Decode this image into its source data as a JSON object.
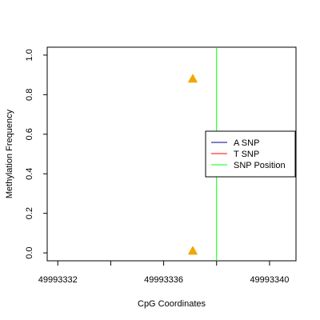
{
  "chart_data": {
    "type": "scatter",
    "xlabel": "CpG Coordinates",
    "ylabel": "Methylation Frequency",
    "xlim": [
      49993331.6,
      49993341.0
    ],
    "ylim": [
      -0.04,
      1.04
    ],
    "x_ticks": [
      49993332,
      49993334,
      49993336,
      49993338,
      49993340,
      49993342
    ],
    "x_tick_labels": [
      {
        "value": 49993332,
        "label": "49993332"
      },
      {
        "value": 49993336,
        "label": "49993336"
      },
      {
        "value": 49993340,
        "label": "49993340"
      }
    ],
    "y_ticks": [
      {
        "value": 0.0,
        "label": "0.0"
      },
      {
        "value": 0.2,
        "label": "0.2"
      },
      {
        "value": 0.4,
        "label": "0.4"
      },
      {
        "value": 0.6,
        "label": "0.6"
      },
      {
        "value": 0.8,
        "label": "0.8"
      },
      {
        "value": 1.0,
        "label": "1.0"
      }
    ],
    "points": [
      {
        "x": 49993337.1,
        "y": 0.88,
        "color": "#f0a800",
        "marker": "triangle"
      },
      {
        "x": 49993337.1,
        "y": 0.01,
        "color": "#f0a800",
        "marker": "triangle"
      }
    ],
    "snp_position": {
      "x": 49993338.0,
      "color": "#00ff00"
    },
    "legend": {
      "placement": "right",
      "entries": [
        {
          "label": "A SNP",
          "color": "#00008b"
        },
        {
          "label": "T SNP",
          "color": "#ff0000"
        },
        {
          "label": "SNP Position",
          "color": "#00ff00"
        }
      ]
    },
    "grid": false
  }
}
